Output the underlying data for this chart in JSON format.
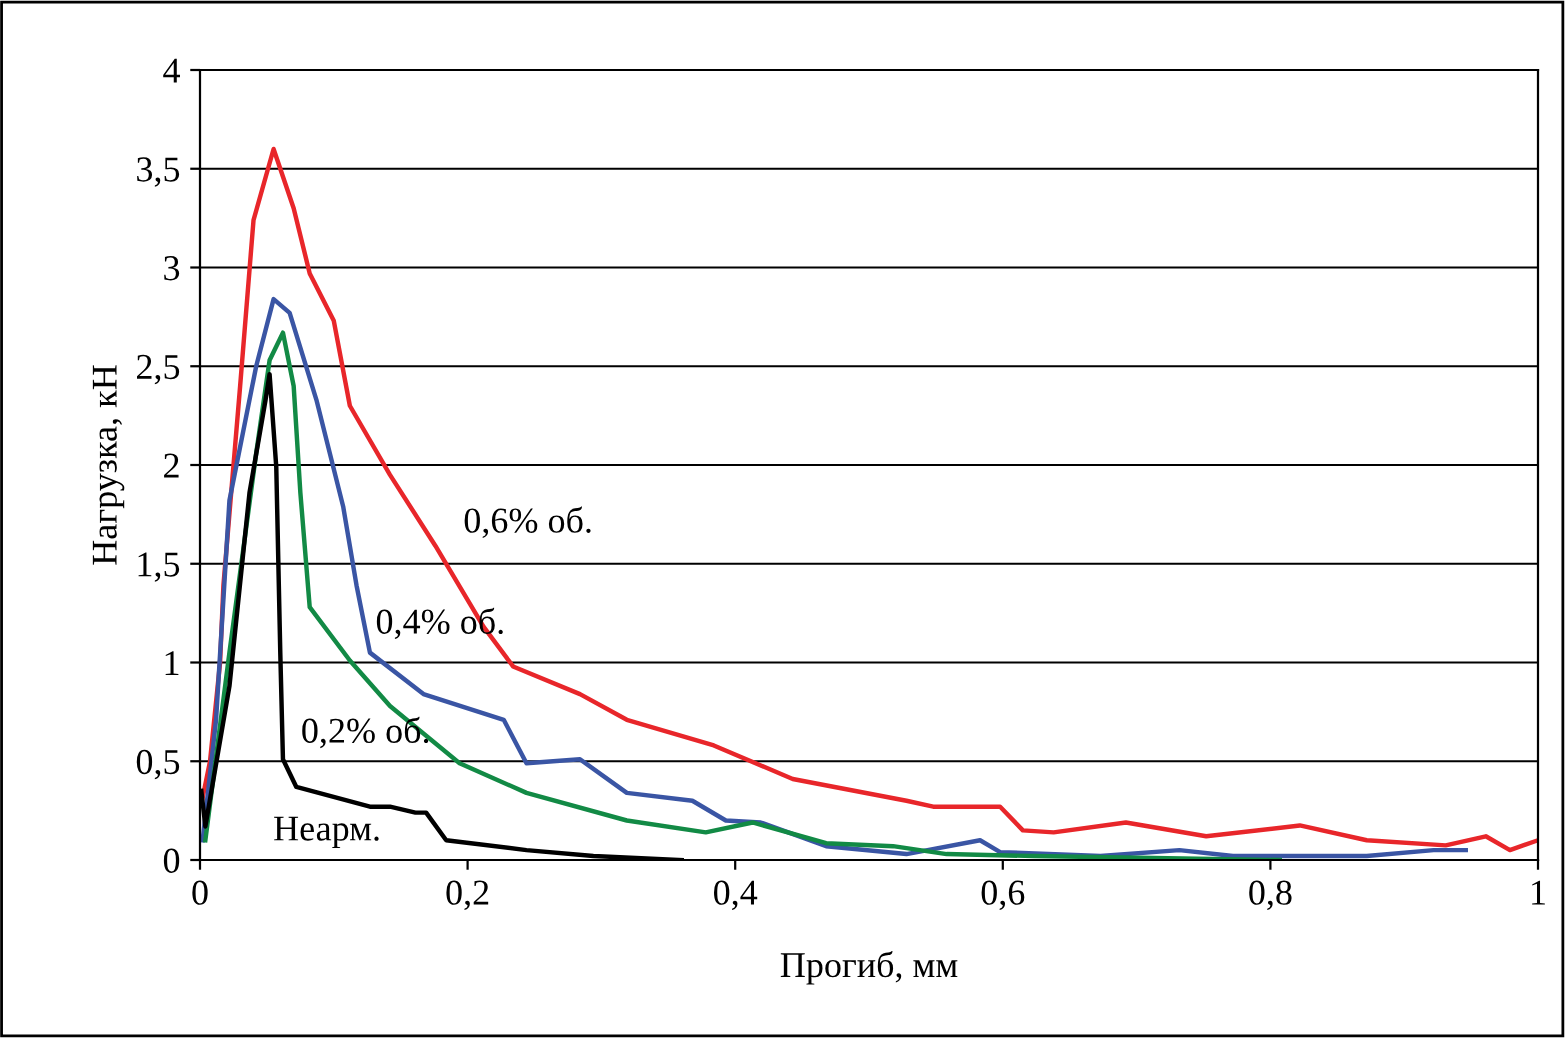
{
  "chart_data": {
    "type": "line",
    "xlabel": "Прогиб, мм",
    "ylabel": "Нагрузка, кН",
    "grid": "y",
    "legend": false,
    "marker": "none",
    "line_style": "solid",
    "xlim": [
      0,
      1
    ],
    "ylim": [
      0,
      4
    ],
    "xticks": [
      0,
      {
        "value": 0.2,
        "label": "0,2"
      },
      {
        "value": 0.4,
        "label": "0,4"
      },
      {
        "value": 0.6,
        "label": "0,6"
      },
      {
        "value": 0.8,
        "label": "0,8"
      },
      1
    ],
    "yticks": [
      0,
      {
        "value": 0.5,
        "label": "0,5"
      },
      1,
      {
        "value": 1.5,
        "label": "1,5"
      },
      2,
      {
        "value": 2.5,
        "label": "2,5"
      },
      3,
      {
        "value": 3.5,
        "label": "3,5"
      },
      4
    ],
    "series": [
      {
        "color": "#e8262a",
        "x": [
          0.0015,
          0.0075,
          0.015,
          0.0175,
          0.03,
          0.04,
          0.055,
          0.07,
          0.082,
          0.1,
          0.112,
          0.142,
          0.176,
          0.212,
          0.234,
          0.284,
          0.319,
          0.384,
          0.443,
          0.528,
          0.548,
          0.598,
          0.615,
          0.638,
          0.692,
          0.752,
          0.822,
          0.872,
          0.931,
          0.961,
          0.979,
          1.0
        ],
        "values": [
          0.3,
          0.5,
          1.0,
          1.39,
          2.4,
          3.24,
          3.6,
          3.3,
          2.97,
          2.73,
          2.3,
          1.95,
          1.59,
          1.18,
          0.98,
          0.84,
          0.71,
          0.58,
          0.41,
          0.3,
          0.27,
          0.27,
          0.15,
          0.14,
          0.19,
          0.12,
          0.175,
          0.1,
          0.074,
          0.12,
          0.05,
          0.1
        ]
      },
      {
        "color": "#3a55a4",
        "x": [
          0.002,
          0.012,
          0.022,
          0.042,
          0.055,
          0.067,
          0.087,
          0.107,
          0.117,
          0.127,
          0.167,
          0.227,
          0.244,
          0.284,
          0.319,
          0.368,
          0.393,
          0.419,
          0.468,
          0.528,
          0.583,
          0.598,
          0.673,
          0.732,
          0.772,
          0.872,
          0.922,
          0.946
        ],
        "values": [
          0.1,
          0.71,
          1.82,
          2.5,
          2.84,
          2.77,
          2.33,
          1.79,
          1.39,
          1.05,
          0.84,
          0.71,
          0.49,
          0.51,
          0.34,
          0.3,
          0.2,
          0.19,
          0.07,
          0.03,
          0.1,
          0.04,
          0.02,
          0.05,
          0.02,
          0.02,
          0.05,
          0.05
        ]
      },
      {
        "color": "#128a45",
        "x": [
          0.004,
          0.022,
          0.042,
          0.052,
          0.062,
          0.07,
          0.075,
          0.082,
          0.112,
          0.142,
          0.194,
          0.244,
          0.319,
          0.378,
          0.413,
          0.468,
          0.518,
          0.558,
          0.623,
          0.807
        ],
        "values": [
          0.1,
          1.05,
          2.06,
          2.53,
          2.67,
          2.4,
          1.86,
          1.28,
          1.01,
          0.78,
          0.49,
          0.34,
          0.2,
          0.14,
          0.19,
          0.085,
          0.07,
          0.03,
          0.02,
          0.0
        ]
      },
      {
        "color": "#000000",
        "x": [
          0.001,
          0.004,
          0.022,
          0.037,
          0.049,
          0.052,
          0.057,
          0.06,
          0.062,
          0.072,
          0.127,
          0.142,
          0.161,
          0.169,
          0.184,
          0.244,
          0.294,
          0.36
        ],
        "values": [
          0.35,
          0.17,
          0.88,
          1.86,
          2.33,
          2.46,
          1.99,
          1.05,
          0.51,
          0.37,
          0.27,
          0.27,
          0.24,
          0.24,
          0.1,
          0.05,
          0.02,
          0.0
        ]
      }
    ],
    "annotations": [
      {
        "text": "0,6% об.",
        "x": 0.176,
        "y": 1.59
      },
      {
        "text": "0,4% об.",
        "x": 0.127,
        "y": 1.05
      },
      {
        "text": "0,2% об.",
        "x": 0.191,
        "y": 0.54
      },
      {
        "text": "Неарм.",
        "x": 0.127,
        "y": 0.27
      }
    ]
  }
}
